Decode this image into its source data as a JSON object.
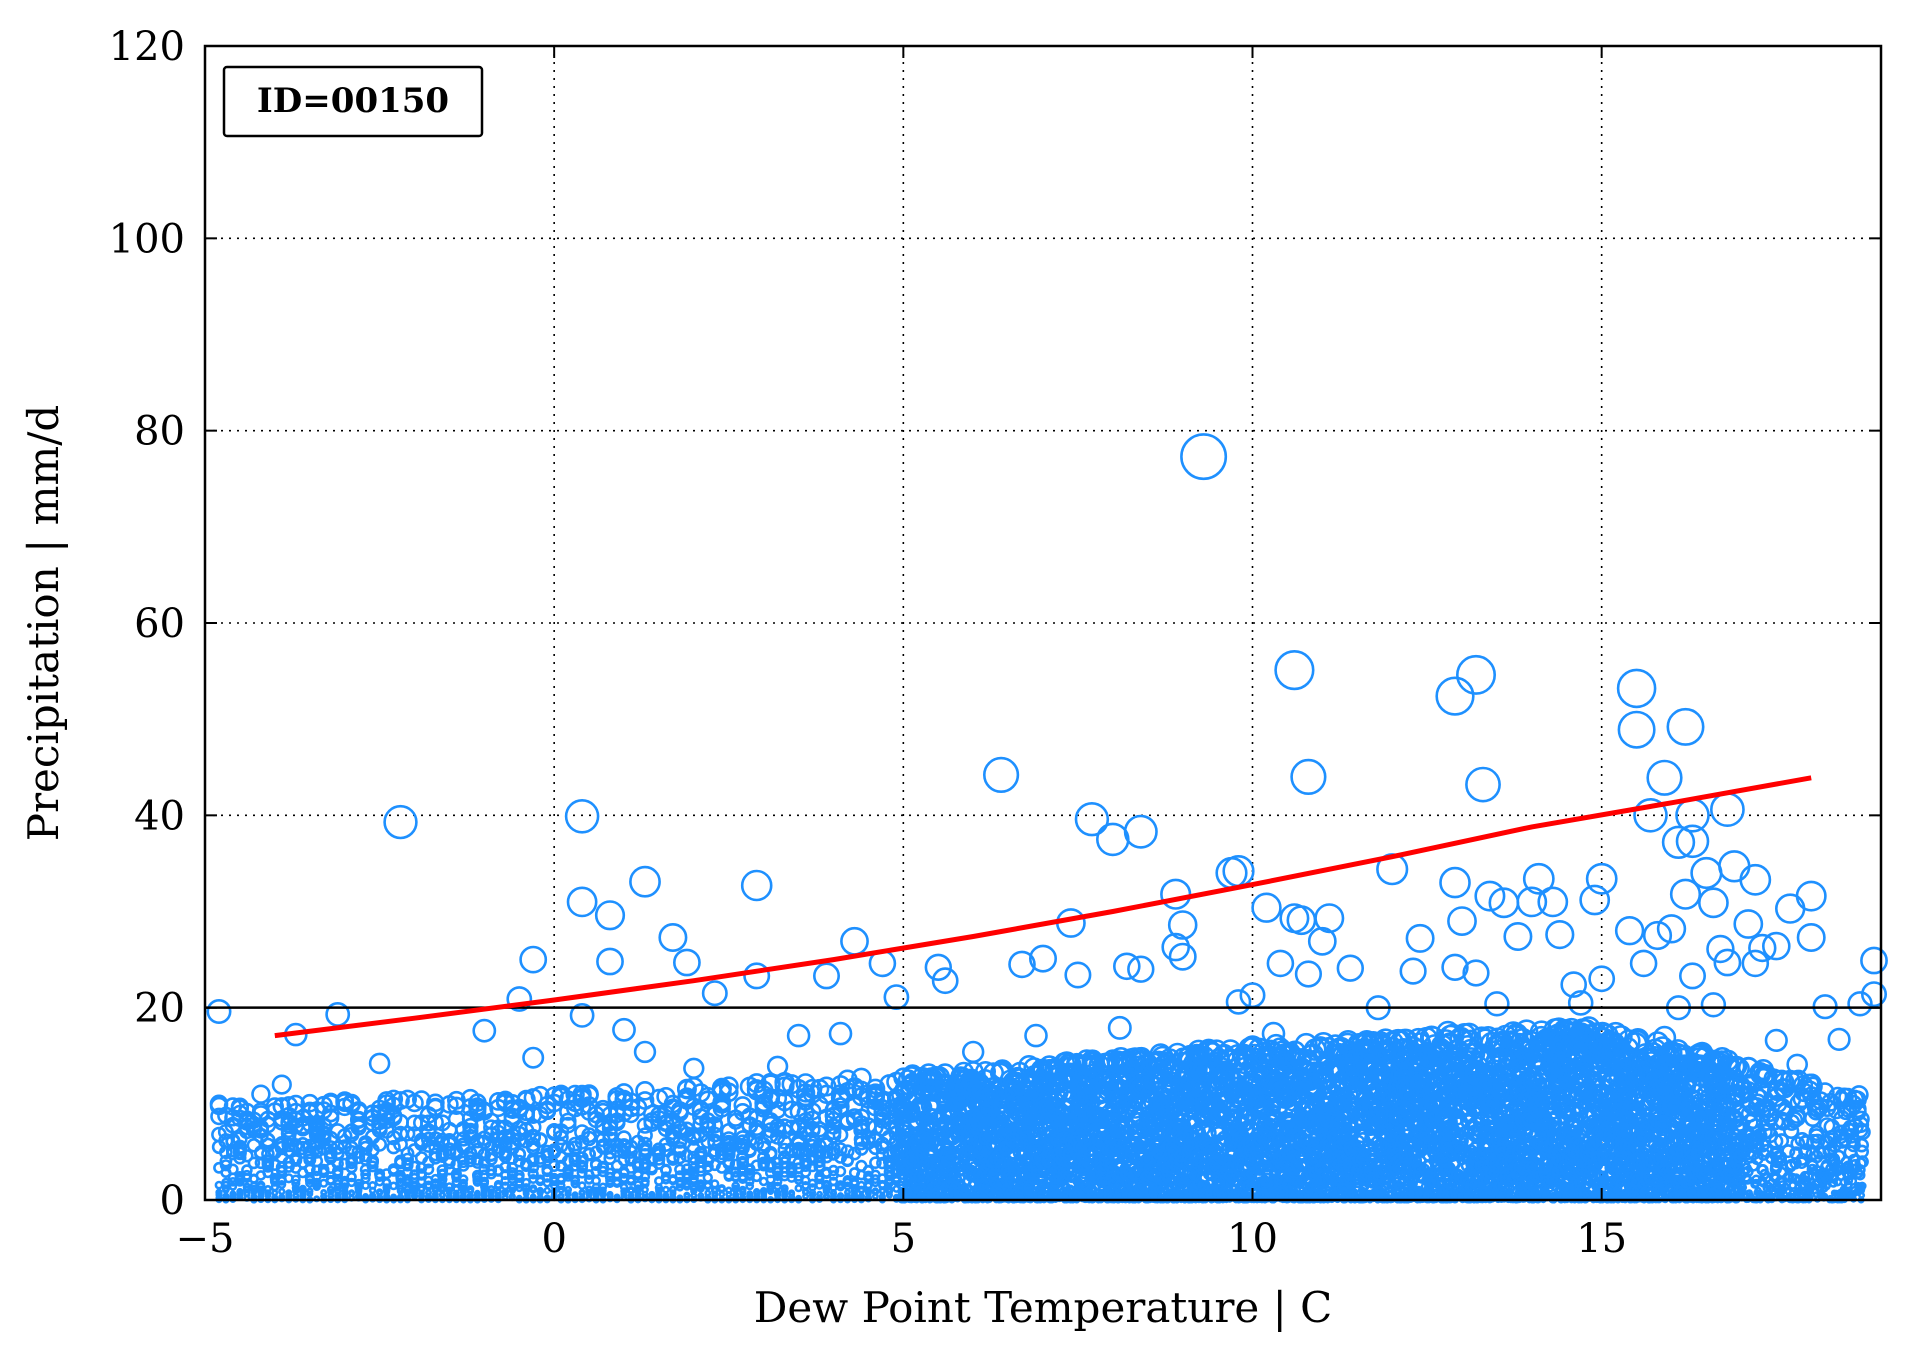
{
  "chart_data": {
    "type": "scatter",
    "annotation": "ID=00150",
    "xlabel": "Dew Point Temperature | C",
    "ylabel": "Precipitation | mm/d",
    "xlim": [
      -5,
      19
    ],
    "ylim": [
      0,
      120
    ],
    "xticks": [
      -5,
      0,
      5,
      10,
      15
    ],
    "yticks": [
      0,
      20,
      40,
      60,
      80,
      100,
      120
    ],
    "grid": true,
    "colors": {
      "points": "#1E90FF",
      "fit": "#FF0000",
      "threshold": "#000000"
    },
    "threshold_line": {
      "y": 20
    },
    "fit_curve": {
      "x": [
        -4.0,
        -2.0,
        0.0,
        2.0,
        4.0,
        6.0,
        8.0,
        10.0,
        12.0,
        14.0,
        16.0,
        18.0
      ],
      "y": [
        17.1,
        18.9,
        20.8,
        22.8,
        25.0,
        27.4,
        30.0,
        32.8,
        35.7,
        38.8,
        41.3,
        43.9
      ]
    },
    "outliers": [
      [
        9.3,
        77.3
      ],
      [
        10.6,
        55.1
      ],
      [
        13.2,
        54.6
      ],
      [
        12.9,
        52.4
      ],
      [
        15.5,
        53.2
      ],
      [
        15.5,
        48.9
      ],
      [
        16.2,
        49.2
      ],
      [
        6.4,
        44.2
      ],
      [
        10.8,
        44.0
      ],
      [
        13.3,
        43.2
      ],
      [
        15.9,
        43.9
      ],
      [
        16.3,
        40.0
      ],
      [
        16.8,
        40.6
      ],
      [
        15.7,
        40.0
      ],
      [
        -2.2,
        39.3
      ],
      [
        0.4,
        39.9
      ],
      [
        7.7,
        39.6
      ],
      [
        8.0,
        37.5
      ],
      [
        8.4,
        38.3
      ],
      [
        16.1,
        37.2
      ],
      [
        16.3,
        37.3
      ],
      [
        12.0,
        34.4
      ],
      [
        1.3,
        33.1
      ],
      [
        2.9,
        32.7
      ],
      [
        9.7,
        34.0
      ],
      [
        9.8,
        34.2
      ],
      [
        12.9,
        33.0
      ],
      [
        15.0,
        33.4
      ],
      [
        16.5,
        34.0
      ],
      [
        16.9,
        34.7
      ],
      [
        17.2,
        33.3
      ],
      [
        14.1,
        33.4
      ],
      [
        0.4,
        31.0
      ],
      [
        8.9,
        31.8
      ],
      [
        10.2,
        30.4
      ],
      [
        13.4,
        31.6
      ],
      [
        13.6,
        30.9
      ],
      [
        14.0,
        31.0
      ],
      [
        14.3,
        31.0
      ],
      [
        16.2,
        31.8
      ],
      [
        18.0,
        31.6
      ],
      [
        17.7,
        30.3
      ],
      [
        0.8,
        29.6
      ],
      [
        7.4,
        28.8
      ],
      [
        9.0,
        28.6
      ],
      [
        10.6,
        29.3
      ],
      [
        10.7,
        29.1
      ],
      [
        11.1,
        29.3
      ],
      [
        13.0,
        29.0
      ],
      [
        14.9,
        31.2
      ],
      [
        16.6,
        30.9
      ],
      [
        17.1,
        28.7
      ],
      [
        1.7,
        27.3
      ],
      [
        4.3,
        26.9
      ],
      [
        8.9,
        26.3
      ],
      [
        9.0,
        25.3
      ],
      [
        11.0,
        26.9
      ],
      [
        12.4,
        27.2
      ],
      [
        13.8,
        27.4
      ],
      [
        14.4,
        27.6
      ],
      [
        15.4,
        28.0
      ],
      [
        15.8,
        27.5
      ],
      [
        16.0,
        28.2
      ],
      [
        16.7,
        26.1
      ],
      [
        17.3,
        26.2
      ],
      [
        17.5,
        26.4
      ],
      [
        18.0,
        27.3
      ],
      [
        -0.3,
        25.0
      ],
      [
        0.8,
        24.8
      ],
      [
        1.9,
        24.7
      ],
      [
        3.9,
        23.3
      ],
      [
        4.7,
        24.6
      ],
      [
        5.5,
        24.2
      ],
      [
        6.7,
        24.5
      ],
      [
        7.0,
        25.1
      ],
      [
        8.2,
        24.3
      ],
      [
        8.4,
        24.0
      ],
      [
        10.4,
        24.6
      ],
      [
        10.8,
        23.5
      ],
      [
        11.4,
        24.1
      ],
      [
        12.3,
        23.8
      ],
      [
        12.9,
        24.2
      ],
      [
        13.2,
        23.6
      ],
      [
        14.6,
        22.4
      ],
      [
        15.0,
        23.0
      ],
      [
        15.6,
        24.6
      ],
      [
        16.3,
        23.3
      ],
      [
        16.8,
        24.7
      ],
      [
        17.2,
        24.6
      ],
      [
        18.9,
        24.9
      ],
      [
        -4.8,
        19.6
      ],
      [
        -3.1,
        19.3
      ],
      [
        -0.5,
        20.9
      ],
      [
        2.3,
        21.5
      ],
      [
        2.9,
        23.3
      ],
      [
        4.9,
        21.1
      ],
      [
        5.6,
        22.8
      ],
      [
        7.5,
        23.4
      ],
      [
        9.8,
        20.6
      ],
      [
        10.0,
        21.3
      ],
      [
        11.8,
        20.0
      ],
      [
        13.5,
        20.4
      ],
      [
        14.7,
        20.5
      ],
      [
        16.1,
        20.0
      ],
      [
        16.6,
        20.3
      ],
      [
        18.2,
        20.1
      ],
      [
        18.7,
        20.4
      ],
      [
        18.9,
        21.4
      ],
      [
        -3.7,
        17.2
      ],
      [
        -2.5,
        14.2
      ],
      [
        -1.0,
        17.6
      ],
      [
        0.4,
        19.2
      ],
      [
        1.3,
        15.4
      ],
      [
        3.5,
        17.1
      ],
      [
        4.1,
        17.3
      ],
      [
        6.9,
        17.1
      ],
      [
        8.1,
        17.9
      ],
      [
        10.3,
        17.3
      ],
      [
        12.8,
        17.4
      ],
      [
        14.4,
        16.3
      ],
      [
        15.9,
        16.9
      ],
      [
        17.5,
        16.6
      ],
      [
        18.4,
        16.7
      ],
      [
        -0.3,
        14.8
      ],
      [
        1.0,
        17.7
      ],
      [
        2.0,
        13.7
      ],
      [
        3.2,
        13.9
      ],
      [
        6.0,
        15.4
      ],
      [
        9.2,
        15.1
      ],
      [
        11.6,
        15.4
      ],
      [
        13.6,
        14.6
      ],
      [
        15.1,
        14.9
      ],
      [
        17.8,
        14.1
      ],
      [
        -4.8,
        10.0
      ],
      [
        -4.5,
        9.7
      ],
      [
        -4.2,
        11.0
      ],
      [
        -3.9,
        12.0
      ]
    ],
    "bulk_cloud": {
      "description_free": true,
      "x_range": [
        -4.8,
        18.7
      ],
      "y_max_at_x": [
        [
          -4.8,
          10.0
        ],
        [
          0.0,
          11.0
        ],
        [
          5.0,
          13.0
        ],
        [
          10.0,
          16.0
        ],
        [
          15.0,
          18.0
        ],
        [
          18.7,
          11.0
        ]
      ]
    }
  }
}
